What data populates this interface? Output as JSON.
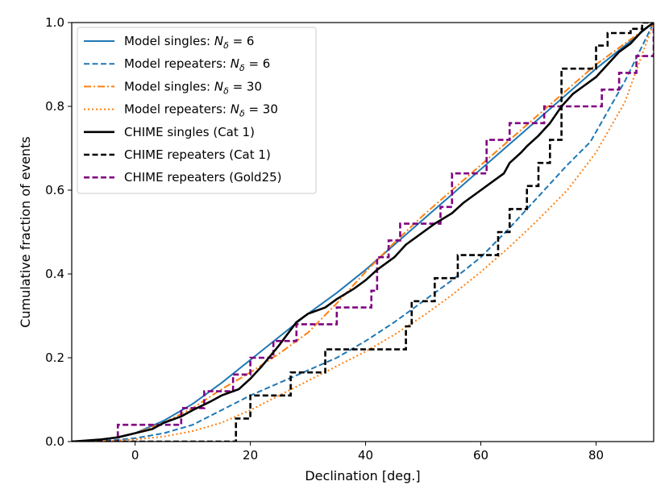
{
  "chart_data": {
    "type": "line",
    "title": "",
    "xlabel": "Declination [deg.]",
    "ylabel": "Cumulative fraction of events",
    "xlim": [
      -11,
      90
    ],
    "ylim": [
      0,
      1
    ],
    "xticks": [
      0,
      20,
      40,
      60,
      80
    ],
    "yticks": [
      0.0,
      0.2,
      0.4,
      0.6,
      0.8,
      1.0
    ],
    "xtick_labels": [
      "0",
      "20",
      "40",
      "60",
      "80"
    ],
    "ytick_labels": [
      "0.0",
      "0.2",
      "0.4",
      "0.6",
      "0.8",
      "1.0"
    ],
    "grid": false,
    "legend_position": "top-left",
    "colors": {
      "blue": "#1f77b4",
      "orange": "#ff7f0e",
      "black": "#000000",
      "purple": "#800080"
    },
    "series": [
      {
        "name": "Model singles: N_δ = 6",
        "label_prefix": "Model singles: ",
        "label_math": "N",
        "label_sub": "δ",
        "label_suffix": " = 6",
        "color": "#1f77b4",
        "style": "solid",
        "kind": "line",
        "x": [
          -11,
          -5,
          0,
          5,
          10,
          15,
          20,
          25,
          30,
          35,
          40,
          45,
          50,
          55,
          60,
          65,
          70,
          75,
          80,
          85,
          90
        ],
        "y": [
          0,
          0.005,
          0.02,
          0.05,
          0.09,
          0.14,
          0.195,
          0.25,
          0.305,
          0.355,
          0.41,
          0.47,
          0.53,
          0.59,
          0.65,
          0.71,
          0.77,
          0.83,
          0.89,
          0.945,
          1.0
        ]
      },
      {
        "name": "Model repeaters: N_δ = 6",
        "label_prefix": "Model repeaters: ",
        "label_math": "N",
        "label_sub": "δ",
        "label_suffix": " = 6",
        "color": "#1f77b4",
        "style": "dashed",
        "kind": "line",
        "x": [
          -11,
          -5,
          0,
          5,
          10,
          15,
          20,
          25,
          30,
          35,
          40,
          45,
          50,
          55,
          60,
          65,
          70,
          75,
          79,
          85,
          90
        ],
        "y": [
          0,
          0.002,
          0.008,
          0.02,
          0.04,
          0.075,
          0.11,
          0.14,
          0.17,
          0.2,
          0.24,
          0.285,
          0.335,
          0.385,
          0.44,
          0.51,
          0.585,
          0.66,
          0.715,
          0.86,
          1.0
        ]
      },
      {
        "name": "Model singles: N_δ = 30",
        "label_prefix": "Model singles: ",
        "label_math": "N",
        "label_sub": "δ",
        "label_suffix": " = 30",
        "color": "#ff7f0e",
        "style": "dashdot",
        "kind": "line",
        "x": [
          -11,
          -5,
          0,
          5,
          10,
          15,
          20,
          25,
          30,
          35,
          40,
          45,
          50,
          55,
          60,
          65,
          70,
          75,
          80,
          85,
          90
        ],
        "y": [
          0,
          0.005,
          0.02,
          0.045,
          0.08,
          0.125,
          0.165,
          0.21,
          0.26,
          0.33,
          0.405,
          0.475,
          0.54,
          0.6,
          0.66,
          0.72,
          0.78,
          0.84,
          0.9,
          0.95,
          1.0
        ]
      },
      {
        "name": "Model repeaters: N_δ = 30",
        "label_prefix": "Model repeaters: ",
        "label_math": "N",
        "label_sub": "δ",
        "label_suffix": " = 30",
        "color": "#ff7f0e",
        "style": "dotted",
        "kind": "line",
        "x": [
          -11,
          -5,
          0,
          5,
          10,
          15,
          20,
          25,
          30,
          35,
          40,
          45,
          50,
          55,
          60,
          65,
          70,
          75,
          80,
          85,
          90
        ],
        "y": [
          0,
          0.001,
          0.005,
          0.012,
          0.025,
          0.045,
          0.075,
          0.11,
          0.145,
          0.18,
          0.215,
          0.255,
          0.3,
          0.35,
          0.405,
          0.465,
          0.53,
          0.6,
          0.69,
          0.81,
          1.0
        ]
      },
      {
        "name": "CHIME singles (Cat 1)",
        "color": "#000000",
        "style": "solid",
        "kind": "line",
        "width": 2.6,
        "x": [
          -11,
          -6,
          -3,
          0,
          3,
          5,
          8,
          10,
          13,
          15,
          18,
          20,
          22,
          25,
          28,
          30,
          33,
          35,
          38,
          40,
          42,
          45,
          47,
          50,
          52,
          55,
          57,
          60,
          62,
          64,
          65,
          67,
          68,
          70,
          72,
          74,
          76,
          78,
          80,
          82,
          84,
          86,
          88,
          90
        ],
        "y": [
          0,
          0.005,
          0.01,
          0.02,
          0.03,
          0.045,
          0.06,
          0.075,
          0.095,
          0.11,
          0.125,
          0.15,
          0.18,
          0.23,
          0.285,
          0.305,
          0.32,
          0.34,
          0.365,
          0.385,
          0.41,
          0.44,
          0.47,
          0.5,
          0.52,
          0.545,
          0.57,
          0.6,
          0.62,
          0.64,
          0.665,
          0.69,
          0.705,
          0.73,
          0.76,
          0.8,
          0.83,
          0.85,
          0.87,
          0.9,
          0.93,
          0.95,
          0.98,
          1.0
        ]
      },
      {
        "name": "CHIME repeaters (Cat 1)",
        "color": "#000000",
        "style": "dashed",
        "kind": "step",
        "width": 2.6,
        "x": [
          -11,
          17.5,
          20,
          27,
          33,
          47,
          48,
          52,
          56,
          63,
          65,
          68,
          70,
          72,
          74,
          80,
          82,
          86,
          88,
          90
        ],
        "y": [
          0,
          0.055,
          0.11,
          0.165,
          0.22,
          0.275,
          0.335,
          0.39,
          0.445,
          0.5,
          0.555,
          0.61,
          0.665,
          0.72,
          0.89,
          0.945,
          0.975,
          0.985,
          1.0,
          1.0
        ]
      },
      {
        "name": "CHIME repeaters (Gold25)",
        "color": "#800080",
        "style": "dashed",
        "kind": "step",
        "width": 2.6,
        "x": [
          -11,
          -3,
          8,
          12,
          17,
          20,
          24,
          28,
          35,
          41,
          42,
          44,
          46,
          53,
          55,
          61,
          65,
          71,
          81,
          84,
          87,
          90
        ],
        "y": [
          0,
          0.04,
          0.08,
          0.12,
          0.16,
          0.2,
          0.24,
          0.28,
          0.32,
          0.36,
          0.44,
          0.48,
          0.52,
          0.56,
          0.64,
          0.72,
          0.76,
          0.8,
          0.84,
          0.88,
          0.92,
          1.0
        ]
      }
    ]
  }
}
